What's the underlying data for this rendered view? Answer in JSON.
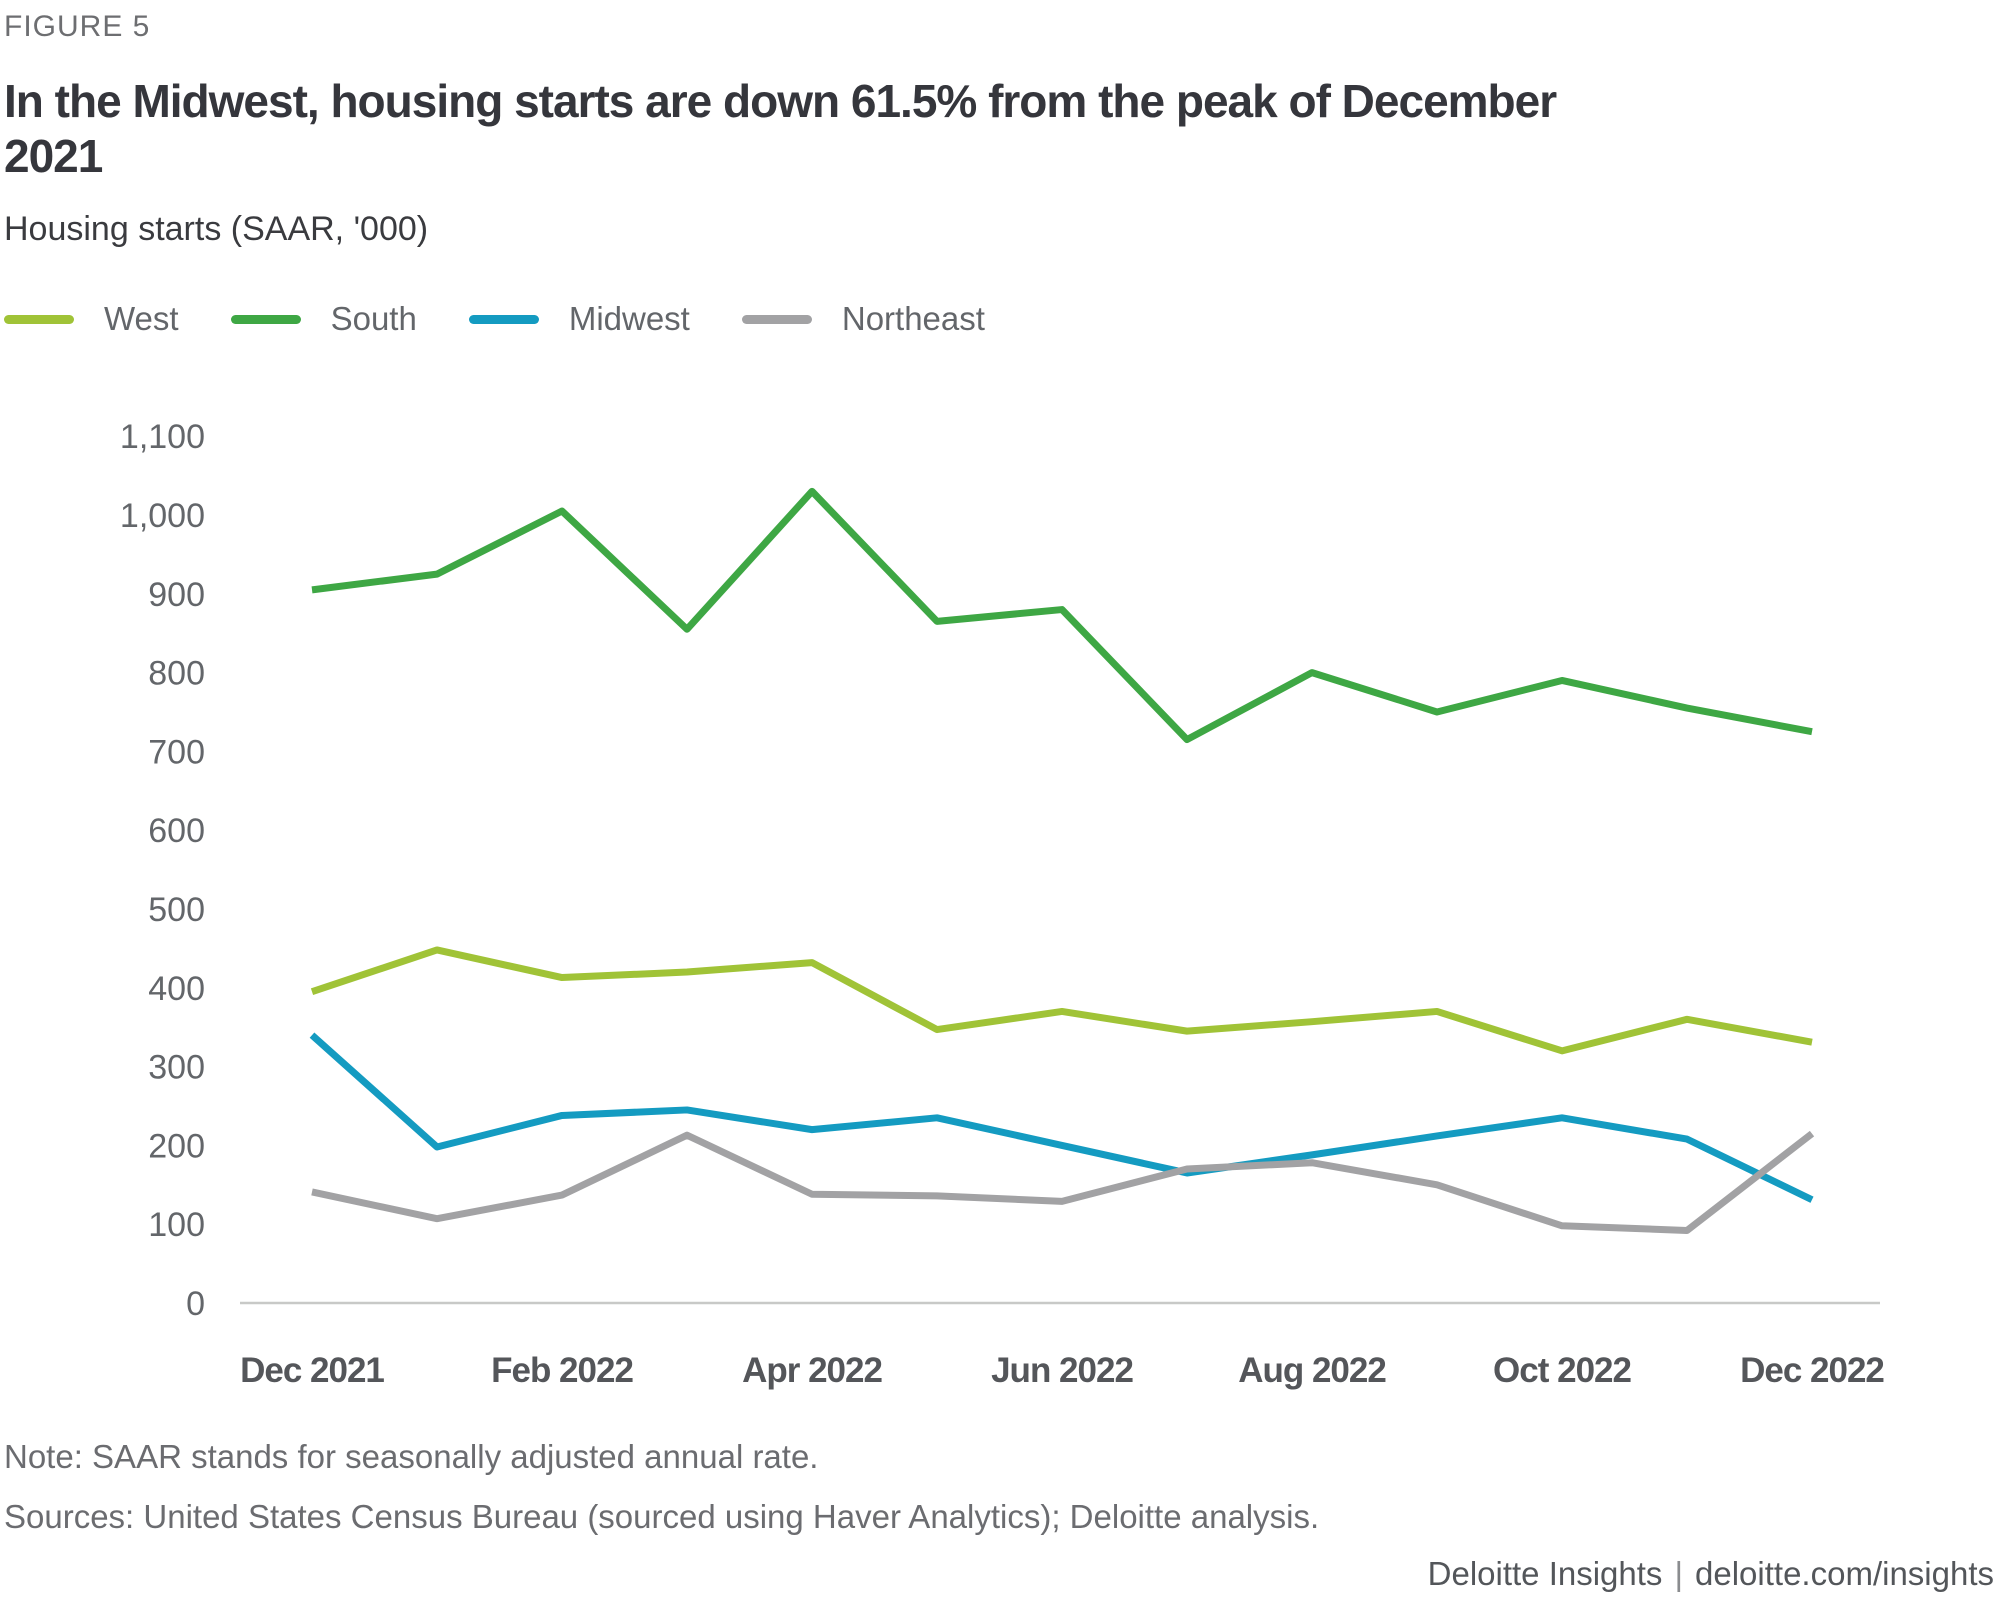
{
  "figure_label": "FIGURE 5",
  "title": "In the Midwest, housing starts are down 61.5% from the peak of December 2021",
  "subtitle": "Housing starts (SAAR, '000)",
  "colors": {
    "west": "#A0C337",
    "south": "#3EA744",
    "midwest": "#149BC1",
    "northeast": "#A2A2A4",
    "axis_line": "#C8C9C7",
    "tick_text": "#63666A",
    "x_tick_text": "#54565A"
  },
  "chart_data": {
    "type": "line",
    "title": "Housing starts (SAAR, '000)",
    "x": [
      "Dec 2021",
      "Jan 2022",
      "Feb 2022",
      "Mar 2022",
      "Apr 2022",
      "May 2022",
      "Jun 2022",
      "Jul 2022",
      "Aug 2022",
      "Sep 2022",
      "Oct 2022",
      "Nov 2022",
      "Dec 2022"
    ],
    "x_tick_labels": [
      "Dec 2021",
      "Feb 2022",
      "Apr 2022",
      "Jun 2022",
      "Aug 2022",
      "Oct 2022",
      "Dec 2022"
    ],
    "y_ticks": [
      0,
      100,
      200,
      300,
      400,
      500,
      600,
      700,
      800,
      900,
      1000,
      1100
    ],
    "ylim": [
      0,
      1100
    ],
    "grid": false,
    "legend_position": "top",
    "series": [
      {
        "name": "West",
        "color": "#A0C337",
        "values": [
          395,
          448,
          413,
          420,
          432,
          347,
          370,
          345,
          357,
          370,
          320,
          360,
          331
        ]
      },
      {
        "name": "South",
        "color": "#3EA744",
        "values": [
          905,
          925,
          1005,
          855,
          1030,
          865,
          880,
          715,
          800,
          750,
          790,
          755,
          725
        ]
      },
      {
        "name": "Midwest",
        "color": "#149BC1",
        "values": [
          340,
          198,
          238,
          245,
          220,
          235,
          200,
          165,
          188,
          212,
          235,
          208,
          131
        ]
      },
      {
        "name": "Northeast",
        "color": "#A2A2A4",
        "values": [
          141,
          107,
          137,
          213,
          138,
          136,
          129,
          170,
          178,
          150,
          98,
          92,
          215
        ]
      }
    ]
  },
  "notes": {
    "note": "Note: SAAR stands for seasonally adjusted annual rate.",
    "sources": "Sources: United States Census Bureau (sourced using Haver Analytics); Deloitte analysis."
  },
  "footer": {
    "brand": "Deloitte Insights",
    "separator": "|",
    "link": "deloitte.com/insights"
  }
}
